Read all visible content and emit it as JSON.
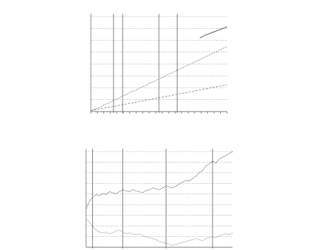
{
  "chart_data": [
    {
      "type": "line",
      "title": "",
      "xlabel": "",
      "ylabel": "",
      "ylim": [
        0,
        110
      ],
      "grid": true,
      "x_tick_count": 22,
      "vertical_markers": [
        5,
        7,
        15,
        19
      ],
      "series": [
        {
          "values": [
            1,
            3,
            5,
            8,
            10,
            13,
            15,
            18,
            20,
            23,
            25,
            28,
            30,
            33,
            35,
            38,
            40,
            43,
            45,
            48,
            50,
            53,
            55,
            58,
            60,
            63,
            65,
            68,
            70,
            73,
            75
          ]
        },
        {
          "values": [
            1,
            2,
            3,
            4,
            5,
            6,
            7,
            8,
            9,
            10,
            11,
            12,
            13,
            14,
            15,
            16,
            17,
            18,
            19,
            20,
            21,
            22,
            23,
            24,
            25,
            26,
            27,
            28,
            29,
            30,
            31
          ]
        },
        {
          "values": [
            null,
            null,
            null,
            null,
            null,
            null,
            null,
            null,
            null,
            null,
            null,
            null,
            null,
            null,
            null,
            null,
            null,
            null,
            null,
            null,
            null,
            null,
            null,
            null,
            85,
            88,
            90,
            92,
            94,
            96,
            98
          ]
        }
      ]
    },
    {
      "type": "line",
      "title": "",
      "xlabel": "",
      "ylabel": "",
      "ylim": [
        0,
        100
      ],
      "grid": true,
      "vertical_markers": [
        2,
        11,
        24,
        38
      ],
      "series": [
        {
          "values": [
            40,
            48,
            52,
            55,
            54,
            56,
            55,
            58,
            57,
            56,
            58,
            60,
            59,
            58,
            60,
            59,
            58,
            57,
            59,
            60,
            62,
            61,
            60,
            62,
            64,
            63,
            62,
            64,
            66,
            68,
            70,
            69,
            72,
            74,
            78,
            80,
            85,
            87,
            90,
            88,
            92,
            94,
            96,
            98,
            100
          ]
        },
        {
          "values": [
            30,
            26,
            22,
            18,
            16,
            15,
            16,
            14,
            15,
            17,
            18,
            16,
            14,
            15,
            14,
            13,
            14,
            12,
            11,
            10,
            9,
            8,
            6,
            5,
            4,
            3,
            2,
            3,
            4,
            5,
            6,
            7,
            8,
            9,
            8,
            7,
            9,
            10,
            11,
            10,
            12,
            13,
            14,
            13,
            15
          ]
        }
      ]
    }
  ]
}
